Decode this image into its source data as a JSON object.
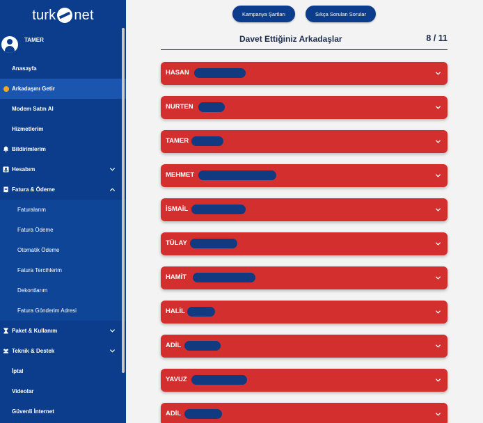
{
  "brand": {
    "logo_left": "turk",
    "logo_right": "net"
  },
  "user": {
    "name": "TAMER"
  },
  "sidebar": {
    "items": [
      {
        "label": "Anasayfa"
      },
      {
        "label": "Arkadaşını Getir"
      },
      {
        "label": "Modem Satın Al"
      },
      {
        "label": "Hizmetlerim"
      },
      {
        "label": "Bildirimlerim"
      },
      {
        "label": "Hesabım"
      },
      {
        "label": "Fatura & Ödeme"
      },
      {
        "label": "Faturalarım"
      },
      {
        "label": "Fatura Ödeme"
      },
      {
        "label": "Otomatik Ödeme"
      },
      {
        "label": "Fatura Tercihlerim"
      },
      {
        "label": "Dekontlarım"
      },
      {
        "label": "Fatura Gönderim Adresi"
      },
      {
        "label": "Paket & Kullanım"
      },
      {
        "label": "Teknik & Destek"
      },
      {
        "label": "İptal"
      },
      {
        "label": "Videolar"
      },
      {
        "label": "Güvenli İnternet"
      }
    ]
  },
  "top_buttons": {
    "campaign": "Kampanya Şartları",
    "faq": "Sıkça Sorulan Sorular"
  },
  "header": {
    "title": "Davet Ettiğiniz Arkadaşlar",
    "count": "8 / 11"
  },
  "friends": [
    {
      "name": "HASAN"
    },
    {
      "name": "NURTEN"
    },
    {
      "name": "TAMER"
    },
    {
      "name": "MEHMET"
    },
    {
      "name": "İSMAİL"
    },
    {
      "name": "TÜLAY"
    },
    {
      "name": "HAMİT"
    },
    {
      "name": "HALİL"
    },
    {
      "name": "ADİL"
    },
    {
      "name": "YAVUZ"
    },
    {
      "name": "ADİL"
    }
  ],
  "colors": {
    "sidebar": "#0b3d8c",
    "card": "#d32f2f",
    "accent": "#f5a623"
  },
  "icons": {
    "arkadasini_getir": "status-dot-icon",
    "bildirimlerim": "bell-icon",
    "hesabim": "id-card-icon",
    "fatura": "receipt-icon",
    "paket": "hourglass-icon",
    "teknik": "people-icon",
    "expand": "chevron-down-icon",
    "collapse": "chevron-up-icon"
  }
}
